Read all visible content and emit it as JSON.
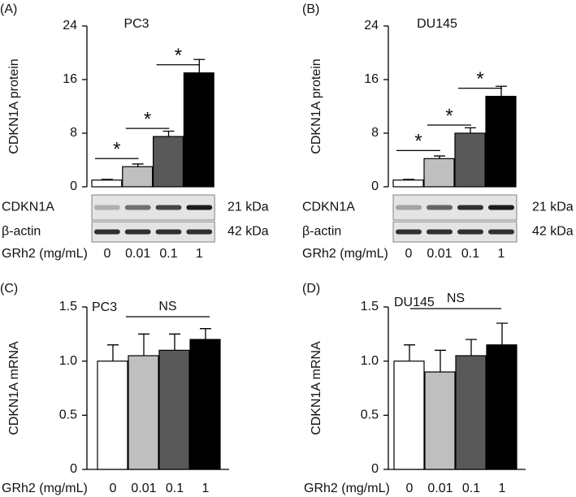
{
  "chart_data": [
    {
      "type": "bar",
      "panel_label": "(A)",
      "title": "PC3",
      "ylabel": "CDKN1A protein",
      "xlabel": "GRh2 (mg/mL)",
      "categories": [
        "0",
        "0.01",
        "0.1",
        "1"
      ],
      "values": [
        1,
        3,
        7.5,
        17
      ],
      "errors": [
        0.1,
        0.4,
        0.8,
        2
      ],
      "colors": [
        "#ffffff",
        "#bfbfbf",
        "#595959",
        "#000000"
      ],
      "ylim": [
        0,
        24
      ],
      "yticks": [
        0,
        8,
        16,
        24
      ],
      "annotations": [
        "*",
        "*",
        "*"
      ],
      "blot": [
        {
          "name": "CDKN1A",
          "size": "21 kDa"
        },
        {
          "name": "β-actin",
          "size": "42 kDa"
        }
      ]
    },
    {
      "type": "bar",
      "panel_label": "(B)",
      "title": "DU145",
      "ylabel": "CDKN1A protein",
      "xlabel": "GRh2 (mg/mL)",
      "categories": [
        "0",
        "0.01",
        "0.1",
        "1"
      ],
      "values": [
        1,
        4.2,
        8,
        13.5
      ],
      "errors": [
        0.1,
        0.4,
        0.8,
        1.5
      ],
      "colors": [
        "#ffffff",
        "#bfbfbf",
        "#595959",
        "#000000"
      ],
      "ylim": [
        0,
        24
      ],
      "yticks": [
        0,
        8,
        16,
        24
      ],
      "annotations": [
        "*",
        "*",
        "*"
      ],
      "blot": [
        {
          "name": "CDKN1A",
          "size": "21 kDa"
        },
        {
          "name": "β-actin",
          "size": "42 kDa"
        }
      ]
    },
    {
      "type": "bar",
      "panel_label": "(C)",
      "title": "PC3",
      "ylabel": "CDKN1A mRNA",
      "xlabel": "GRh2 (mg/mL)",
      "categories": [
        "0",
        "0.01",
        "0.1",
        "1"
      ],
      "values": [
        1.0,
        1.05,
        1.1,
        1.2
      ],
      "errors": [
        0.15,
        0.2,
        0.15,
        0.1
      ],
      "colors": [
        "#ffffff",
        "#bfbfbf",
        "#595959",
        "#000000"
      ],
      "ylim": [
        0,
        1.5
      ],
      "yticks": [
        0,
        0.5,
        {
          "value": 1,
          "label": "1.0"
        },
        {
          "value": 1.5,
          "label": "1.5"
        }
      ],
      "annotations": [
        "NS"
      ]
    },
    {
      "type": "bar",
      "panel_label": "(D)",
      "title": "DU145",
      "ylabel": "CDKN1A mRNA",
      "xlabel": "GRh2 (mg/mL)",
      "categories": [
        "0",
        "0.01",
        "0.1",
        "1"
      ],
      "values": [
        1.0,
        0.9,
        1.05,
        1.15
      ],
      "errors": [
        0.15,
        0.2,
        0.15,
        0.2
      ],
      "colors": [
        "#ffffff",
        "#bfbfbf",
        "#595959",
        "#000000"
      ],
      "ylim": [
        0,
        1.5
      ],
      "yticks": [
        0,
        0.5,
        {
          "value": 1,
          "label": "1.0"
        },
        {
          "value": 1.5,
          "label": "1.5"
        }
      ],
      "annotations": [
        "NS"
      ]
    }
  ]
}
